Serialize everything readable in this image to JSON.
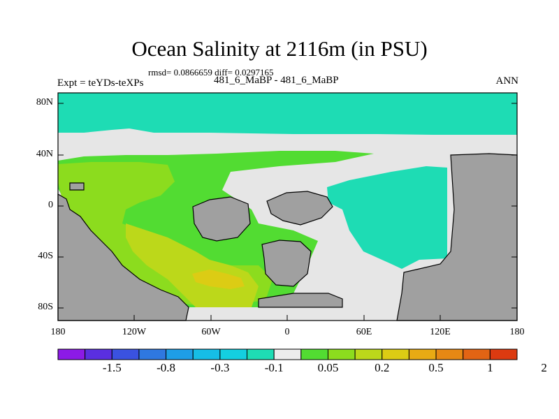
{
  "title": "Ocean Salinity at 2116m (in PSU)",
  "stats_line": "rmsd= 0.0866659 diff= 0.0297165",
  "subtitle": "481_6_MaBP - 481_6_MaBP",
  "left_label": "Expt = teYDs-teXPs",
  "right_label": "ANN",
  "lat_labels": [
    "80N",
    "40N",
    "0",
    "40S",
    "80S"
  ],
  "lon_labels": [
    "180",
    "120W",
    "60W",
    "0",
    "60E",
    "120E",
    "180"
  ],
  "colorbar": {
    "colors": [
      "#8c1ae6",
      "#5a2fe0",
      "#3a52e0",
      "#2f78e0",
      "#1e9ee6",
      "#16bde6",
      "#14cfe0",
      "#1edcb4",
      "#ececec",
      "#52dc32",
      "#8cdc1e",
      "#bcd81a",
      "#dccc14",
      "#e8aa14",
      "#e68814",
      "#e26414",
      "#dc3a10"
    ],
    "labels": [
      "-1.5",
      "-0.8",
      "-0.3",
      "-0.1",
      "0.05",
      "0.2",
      "0.5",
      "1",
      "2"
    ]
  }
}
